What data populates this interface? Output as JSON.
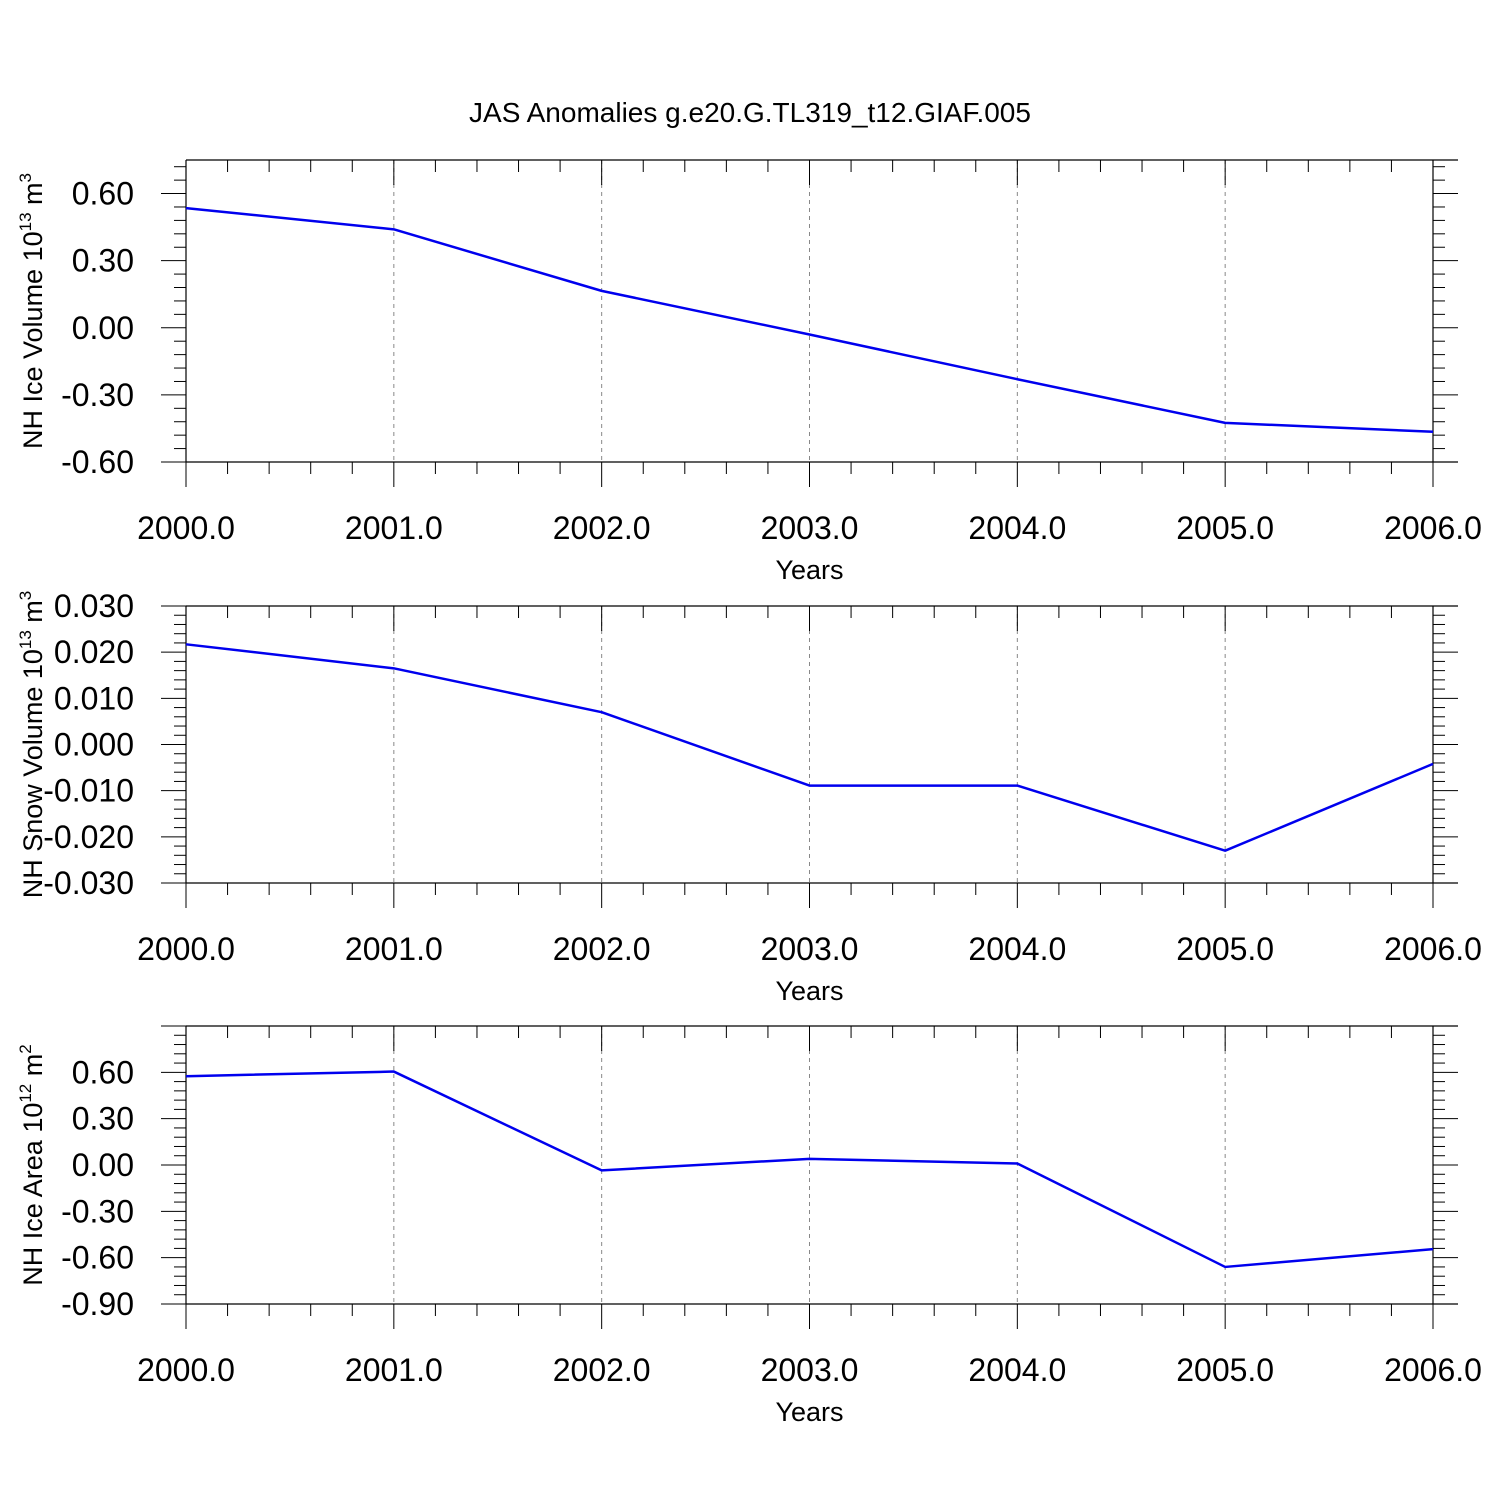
{
  "title": "JAS Anomalies g.e20.G.TL319_t12.GIAF.005",
  "colors": {
    "line": "#0000ee",
    "axis": "#000000",
    "grid": "#888888"
  },
  "chart_data": [
    {
      "type": "line",
      "ylabel": "NH Ice Volume 10",
      "ylabel_exp": "13",
      "ylabel_unit": "m",
      "ylabel_unit_exp": "3",
      "xlabel": "Years",
      "x": [
        2000,
        2001,
        2002,
        2003,
        2004,
        2005,
        2006
      ],
      "xtick_labels": [
        "2000.0",
        "2001.0",
        "2002.0",
        "2003.0",
        "2004.0",
        "2005.0",
        "2006.0"
      ],
      "ylim": [
        -0.6,
        0.75
      ],
      "yticks": [
        0.6,
        0.3,
        0.0,
        -0.3,
        -0.6
      ],
      "ytick_labels": [
        "0.60",
        "0.30",
        "0.00",
        "-0.30",
        "-0.60"
      ],
      "series": [
        {
          "name": "NH Ice Volume",
          "values": [
            0.535,
            0.44,
            0.165,
            -0.03,
            -0.23,
            -0.425,
            -0.465
          ]
        }
      ]
    },
    {
      "type": "line",
      "ylabel": "NH Snow Volume 10",
      "ylabel_exp": "13",
      "ylabel_unit": "m",
      "ylabel_unit_exp": "3",
      "xlabel": "Years",
      "x": [
        2000,
        2001,
        2002,
        2003,
        2004,
        2005,
        2006
      ],
      "xtick_labels": [
        "2000.0",
        "2001.0",
        "2002.0",
        "2003.0",
        "2004.0",
        "2005.0",
        "2006.0"
      ],
      "ylim": [
        -0.03,
        0.03
      ],
      "yticks": [
        0.03,
        0.02,
        0.01,
        0.0,
        -0.01,
        -0.02,
        -0.03
      ],
      "ytick_labels": [
        "0.030",
        "0.020",
        "0.010",
        "0.000",
        "-0.010",
        "-0.020",
        "-0.030"
      ],
      "series": [
        {
          "name": "NH Snow Volume",
          "values": [
            0.0217,
            0.0165,
            0.007,
            -0.0089,
            -0.0089,
            -0.023,
            -0.0042
          ]
        }
      ]
    },
    {
      "type": "line",
      "ylabel": "NH Ice Area 10",
      "ylabel_exp": "12",
      "ylabel_unit": "m",
      "ylabel_unit_exp": "2",
      "xlabel": "Years",
      "x": [
        2000,
        2001,
        2002,
        2003,
        2004,
        2005,
        2006
      ],
      "xtick_labels": [
        "2000.0",
        "2001.0",
        "2002.0",
        "2003.0",
        "2004.0",
        "2005.0",
        "2006.0"
      ],
      "ylim": [
        -0.9,
        0.9
      ],
      "yticks": [
        0.6,
        0.3,
        0.0,
        -0.3,
        -0.6,
        -0.9
      ],
      "ytick_labels": [
        "0.60",
        "0.30",
        "0.00",
        "-0.30",
        "-0.60",
        "-0.90"
      ],
      "series": [
        {
          "name": "NH Ice Area",
          "values": [
            0.575,
            0.605,
            -0.035,
            0.04,
            0.01,
            -0.66,
            -0.545
          ]
        }
      ]
    }
  ]
}
